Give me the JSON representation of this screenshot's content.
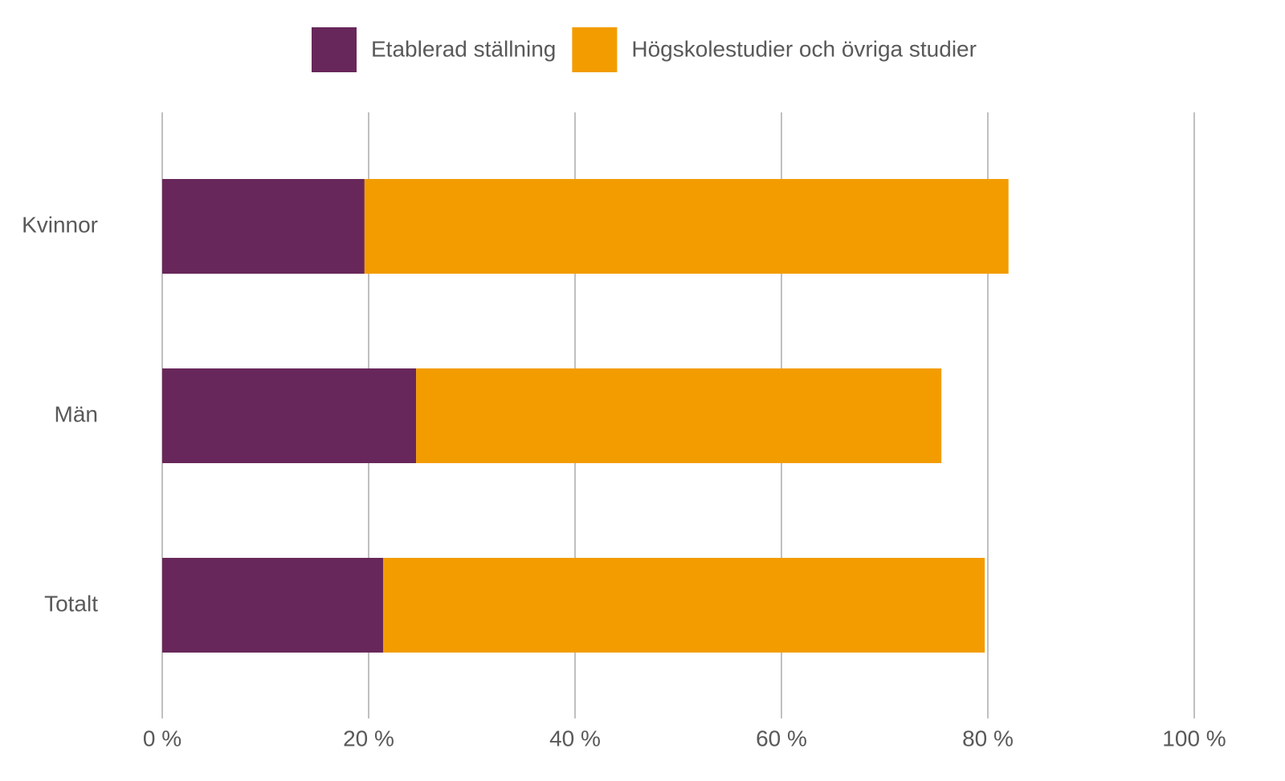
{
  "chart_data": {
    "type": "stacked-bar-horizontal",
    "categories": [
      "Kvinnor",
      "Män",
      "Totalt"
    ],
    "series": [
      {
        "name": "Etablerad ställning",
        "color": "#68275a",
        "values": [
          19.6,
          24.6,
          21.4
        ]
      },
      {
        "name": "Högskolestudier och övriga studier",
        "color": "#f39c00",
        "values": [
          62.4,
          50.9,
          58.3
        ]
      }
    ],
    "xlim": [
      0,
      100
    ],
    "xticks": [
      {
        "value": 0,
        "label": "0 %"
      },
      {
        "value": 20,
        "label": "20 %"
      },
      {
        "value": 40,
        "label": "40 %"
      },
      {
        "value": 60,
        "label": "60 %"
      },
      {
        "value": 80,
        "label": "80 %"
      },
      {
        "value": 100,
        "label": "100 %"
      }
    ],
    "grid": true,
    "legend": "top"
  }
}
